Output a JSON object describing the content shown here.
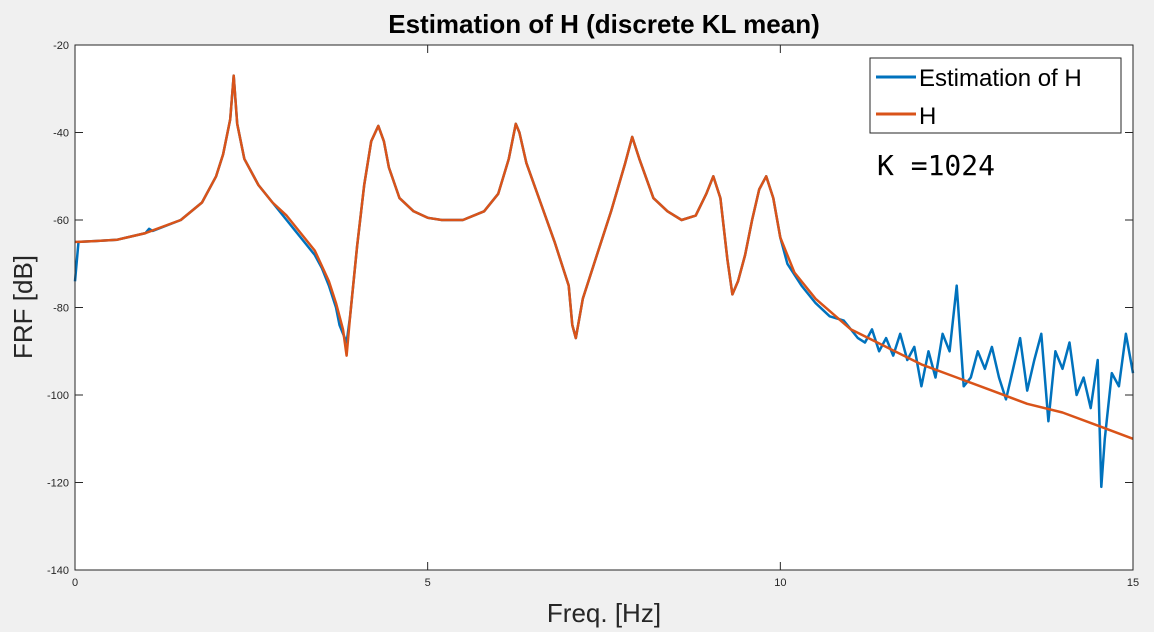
{
  "chart_data": {
    "type": "line",
    "title": "Estimation of H (discrete KL mean)",
    "xlabel": "Freq. [Hz]",
    "ylabel": "FRF [dB]",
    "xlim": [
      0,
      15
    ],
    "ylim": [
      -140,
      -20
    ],
    "xticks": [
      0,
      5,
      10,
      15
    ],
    "yticks": [
      -140,
      -120,
      -100,
      -80,
      -60,
      -40,
      -20
    ],
    "grid": false,
    "legend_position": "top-right",
    "annotation": "K =1024",
    "series": [
      {
        "name": "Estimation of H",
        "color": "#0072bd",
        "x": [
          0,
          0.05,
          0.3,
          0.6,
          1.0,
          1.05,
          1.1,
          1.5,
          1.8,
          2.0,
          2.1,
          2.2,
          2.25,
          2.3,
          2.4,
          2.6,
          2.8,
          3.0,
          3.1,
          3.2,
          3.4,
          3.5,
          3.6,
          3.7,
          3.75,
          3.85,
          3.9,
          4.0,
          4.1,
          4.2,
          4.3,
          4.38,
          4.45,
          4.6,
          4.8,
          5.0,
          5.2,
          5.5,
          5.8,
          6.0,
          6.15,
          6.25,
          6.3,
          6.4,
          6.6,
          6.8,
          7.0,
          7.05,
          7.1,
          7.2,
          7.4,
          7.6,
          7.8,
          7.9,
          8.0,
          8.2,
          8.4,
          8.6,
          8.8,
          8.95,
          9.05,
          9.15,
          9.25,
          9.32,
          9.4,
          9.5,
          9.6,
          9.7,
          9.8,
          9.9,
          10.0,
          10.1,
          10.3,
          10.5,
          10.7,
          10.9,
          11.0,
          11.1,
          11.2,
          11.3,
          11.4,
          11.5,
          11.6,
          11.7,
          11.8,
          11.9,
          12.0,
          12.1,
          12.2,
          12.3,
          12.4,
          12.5,
          12.6,
          12.7,
          12.8,
          12.9,
          13.0,
          13.1,
          13.2,
          13.3,
          13.4,
          13.5,
          13.6,
          13.7,
          13.8,
          13.9,
          14.0,
          14.1,
          14.2,
          14.3,
          14.4,
          14.5,
          14.55,
          14.6,
          14.7,
          14.8,
          14.9,
          15.0
        ],
        "values": [
          -74,
          -65,
          -64.8,
          -64.5,
          -63,
          -62,
          -62.5,
          -60,
          -56,
          -50,
          -45,
          -37,
          -27,
          -38,
          -46,
          -52,
          -56,
          -60,
          -62,
          -64,
          -68,
          -71,
          -75,
          -80,
          -84,
          -88,
          -82,
          -66,
          -52,
          -42,
          -38.5,
          -42,
          -48,
          -55,
          -58,
          -59.5,
          -60,
          -60,
          -58,
          -54,
          -46,
          -38,
          -40,
          -47,
          -56,
          -65,
          -75,
          -84,
          -87,
          -78,
          -68,
          -58,
          -47,
          -41,
          -46,
          -55,
          -58,
          -60,
          -59,
          -54,
          -50,
          -55,
          -69,
          -77,
          -74,
          -68,
          -60,
          -53,
          -50,
          -55,
          -64,
          -70,
          -75,
          -79,
          -82,
          -83,
          -85,
          -87,
          -88,
          -85,
          -90,
          -87,
          -91,
          -86,
          -92,
          -89,
          -98,
          -90,
          -96,
          -86,
          -90,
          -75,
          -98,
          -96,
          -90,
          -94,
          -89,
          -96,
          -101,
          -94,
          -87,
          -99,
          -92,
          -86,
          -106,
          -90,
          -94,
          -88,
          -100,
          -96,
          -103,
          -92,
          -121,
          -110,
          -95,
          -98,
          -86,
          -95
        ]
      },
      {
        "name": "H",
        "color": "#d95319",
        "x": [
          0,
          0.05,
          0.3,
          0.6,
          1.0,
          1.5,
          1.8,
          2.0,
          2.1,
          2.2,
          2.25,
          2.3,
          2.4,
          2.6,
          2.8,
          3.0,
          3.2,
          3.4,
          3.6,
          3.7,
          3.8,
          3.85,
          3.9,
          4.0,
          4.1,
          4.2,
          4.3,
          4.38,
          4.45,
          4.6,
          4.8,
          5.0,
          5.2,
          5.5,
          5.8,
          6.0,
          6.15,
          6.25,
          6.3,
          6.4,
          6.6,
          6.8,
          7.0,
          7.05,
          7.1,
          7.2,
          7.4,
          7.6,
          7.8,
          7.9,
          8.0,
          8.2,
          8.4,
          8.6,
          8.8,
          8.95,
          9.05,
          9.15,
          9.25,
          9.32,
          9.4,
          9.5,
          9.6,
          9.7,
          9.8,
          9.9,
          10.0,
          10.2,
          10.5,
          11.0,
          11.5,
          12.0,
          12.5,
          13.0,
          13.5,
          14.0,
          14.5,
          15.0
        ],
        "values": [
          -65,
          -65,
          -64.8,
          -64.5,
          -63,
          -60,
          -56,
          -50,
          -45,
          -37,
          -27,
          -38,
          -46,
          -52,
          -56,
          -59,
          -63,
          -67,
          -74,
          -79,
          -85,
          -91,
          -82,
          -66,
          -52,
          -42,
          -38.5,
          -42,
          -48,
          -55,
          -58,
          -59.5,
          -60,
          -60,
          -58,
          -54,
          -46,
          -38,
          -40,
          -47,
          -56,
          -65,
          -75,
          -84,
          -87,
          -78,
          -68,
          -58,
          -47,
          -41,
          -46,
          -55,
          -58,
          -60,
          -59,
          -54,
          -50,
          -55,
          -69,
          -77,
          -74,
          -68,
          -60,
          -53,
          -50,
          -55,
          -64,
          -72,
          -78,
          -85,
          -89,
          -93,
          -96,
          -99,
          -102,
          -104,
          -107,
          -110
        ]
      }
    ]
  }
}
